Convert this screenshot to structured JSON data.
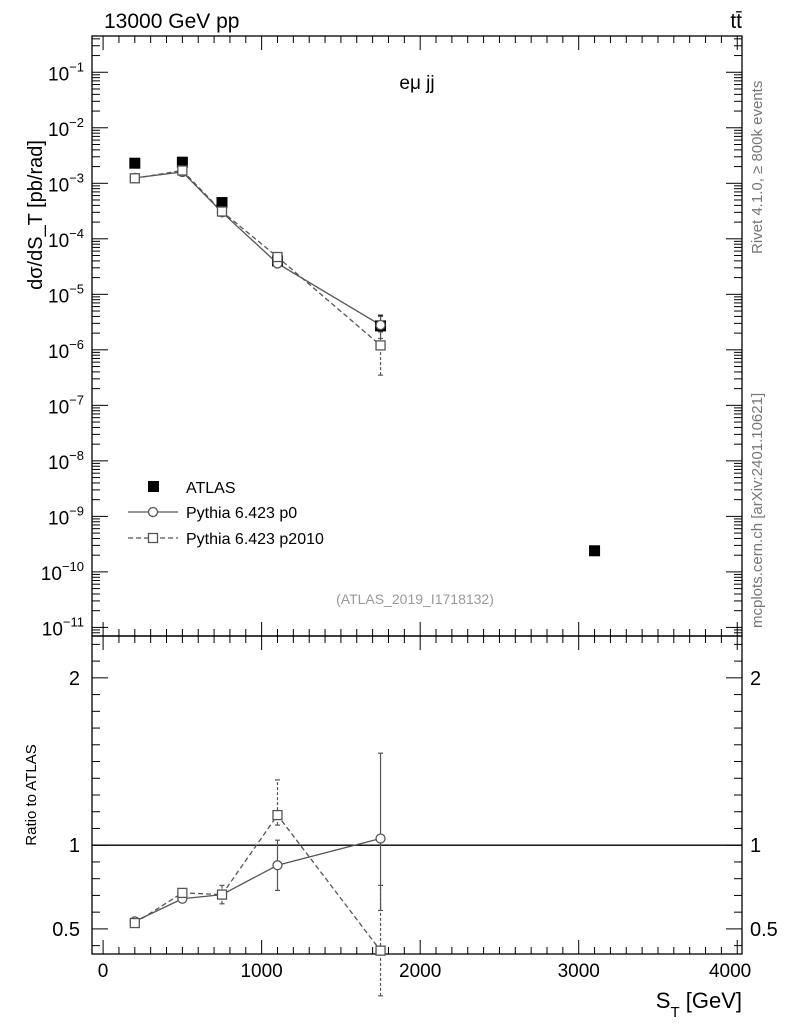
{
  "header": {
    "left": "13000 GeV pp",
    "right": "tt̄"
  },
  "side_labels": {
    "top": "Rivet 4.1.0, ≥ 800k events",
    "bottom": "mcplots.cern.ch [arXiv:2401.10621]"
  },
  "chart_data": [
    {
      "type": "scatter",
      "panel": "main",
      "annotation": "eμ jj",
      "watermark": "(ATLAS_2019_I1718132)",
      "ylabel": "dσ/dS_T [pb/rad]",
      "yscale": "log",
      "xlim": [
        -70,
        4030
      ],
      "ylim": [
        7e-12,
        0.45
      ],
      "legend_placement": "lower-left",
      "series": [
        {
          "name": "ATLAS",
          "style": "filled-square",
          "color": "#000000",
          "x": [
            200,
            500,
            750,
            1100,
            1750,
            3100
          ],
          "y": [
            0.0023,
            0.0024,
            0.00045,
            4e-05,
            2.7e-06,
            2.4e-10
          ],
          "yerr_low": [
            0.0023,
            0.0024,
            0.00045,
            4e-05,
            2.2e-06,
            2.4e-10
          ],
          "yerr_high": [
            0.0023,
            0.0024,
            0.00045,
            4e-05,
            4.2e-06,
            2.4e-10
          ]
        },
        {
          "name": "Pythia 6.423 p0",
          "style": "open-circle-solid",
          "color": "#555555",
          "x": [
            200,
            500,
            750,
            1100,
            1750
          ],
          "y": [
            0.00125,
            0.0016,
            0.0003,
            3.6e-05,
            2.8e-06
          ],
          "yerr_low": [
            0.00125,
            0.0016,
            0.0003,
            3.3e-05,
            1.6e-06
          ],
          "yerr_high": [
            0.00125,
            0.0016,
            0.0003,
            3.9e-05,
            4e-06
          ]
        },
        {
          "name": "Pythia 6.423 p2010",
          "style": "open-square-dashed",
          "color": "#555555",
          "x": [
            200,
            500,
            750,
            1100,
            1750
          ],
          "y": [
            0.00123,
            0.0017,
            0.00031,
            4.7e-05,
            1.2e-06
          ],
          "yerr_low": [
            0.00123,
            0.0017,
            0.00031,
            4.3e-05,
            3.5e-07
          ],
          "yerr_high": [
            0.00123,
            0.0017,
            0.00031,
            5.1e-05,
            2.1e-06
          ]
        }
      ],
      "y_ticks": [
        {
          "value": 1e-11,
          "base": "10",
          "exp": "−11"
        },
        {
          "value": 1e-10,
          "base": "10",
          "exp": "−10"
        },
        {
          "value": 1e-09,
          "base": "10",
          "exp": "−9"
        },
        {
          "value": 1e-08,
          "base": "10",
          "exp": "−8"
        },
        {
          "value": 1e-07,
          "base": "10",
          "exp": "−7"
        },
        {
          "value": 1e-06,
          "base": "10",
          "exp": "−6"
        },
        {
          "value": 1e-05,
          "base": "10",
          "exp": "−5"
        },
        {
          "value": 0.0001,
          "base": "10",
          "exp": "−4"
        },
        {
          "value": 0.001,
          "base": "10",
          "exp": "−3"
        },
        {
          "value": 0.01,
          "base": "10",
          "exp": "−2"
        },
        {
          "value": 0.1,
          "base": "10",
          "exp": "−1"
        }
      ]
    },
    {
      "type": "scatter",
      "panel": "ratio",
      "ylabel": "Ratio to ATLAS",
      "xlabel": "S_T [GeV]",
      "xlim": [
        -70,
        4030
      ],
      "ylim": [
        0.35,
        2.25
      ],
      "reference_line": 1,
      "x_ticks": [
        "0",
        "1000",
        "2000",
        "3000",
        "4000"
      ],
      "x_tick_values": [
        0,
        1000,
        2000,
        3000,
        4000
      ],
      "y_ticks": [
        "0.5",
        "1",
        "2"
      ],
      "y_tick_values": [
        0.5,
        1,
        2
      ],
      "series": [
        {
          "name": "Pythia 6.423 p0",
          "style": "open-circle-solid",
          "color": "#555555",
          "x": [
            200,
            500,
            750,
            1100,
            1750
          ],
          "y": [
            0.545,
            0.68,
            0.705,
            0.88,
            1.04
          ],
          "yerr_low": [
            0.525,
            0.66,
            0.67,
            0.73,
            0.61
          ],
          "yerr_high": [
            0.565,
            0.7,
            0.74,
            1.03,
            1.55
          ]
        },
        {
          "name": "Pythia 6.423 p2010",
          "style": "open-square-dashed",
          "color": "#555555",
          "x": [
            200,
            500,
            750,
            1100,
            1750
          ],
          "y": [
            0.535,
            0.715,
            0.705,
            1.18,
            0.37
          ],
          "yerr_low": [
            0.515,
            0.695,
            0.65,
            1.12,
            0.1
          ],
          "yerr_high": [
            0.555,
            0.735,
            0.76,
            1.39,
            0.76
          ]
        }
      ]
    }
  ]
}
